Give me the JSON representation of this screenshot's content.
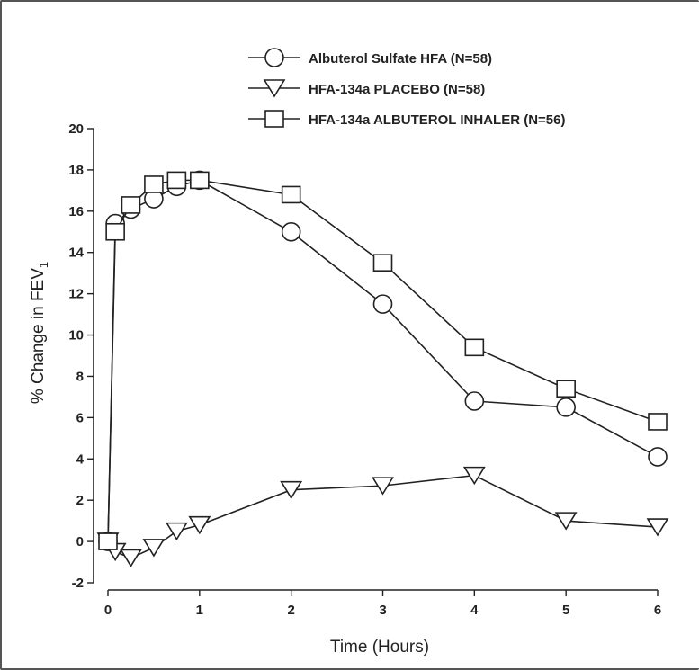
{
  "chart_data": {
    "type": "line",
    "xlabel": "Time (Hours)",
    "ylabel": "% Change in FEV",
    "ylabel_subscript": "1",
    "xlim": [
      0,
      6
    ],
    "ylim": [
      -2,
      20
    ],
    "x_ticks": [
      0,
      1,
      2,
      3,
      4,
      5,
      6
    ],
    "y_ticks": [
      -2,
      0,
      2,
      4,
      6,
      8,
      10,
      12,
      14,
      16,
      18,
      20
    ],
    "grid": false,
    "legend_position": "top-right",
    "series": [
      {
        "name": "Albuterol Sulfate HFA (N=58)",
        "marker": "circle",
        "x": [
          0,
          0.08,
          0.25,
          0.5,
          0.75,
          1,
          2,
          3,
          4,
          5,
          6
        ],
        "y": [
          0,
          15.4,
          16.1,
          16.6,
          17.2,
          17.5,
          15.0,
          11.5,
          6.8,
          6.5,
          4.1
        ]
      },
      {
        "name": "HFA-134a PLACEBO (N=58)",
        "marker": "triangle-down",
        "x": [
          0,
          0.08,
          0.25,
          0.5,
          0.75,
          1,
          2,
          3,
          4,
          5,
          6
        ],
        "y": [
          0,
          -0.5,
          -0.8,
          -0.3,
          0.5,
          0.8,
          2.5,
          2.7,
          3.2,
          1.0,
          0.7
        ]
      },
      {
        "name": "HFA-134a ALBUTEROL INHALER (N=56)",
        "marker": "square",
        "x": [
          0,
          0.08,
          0.25,
          0.5,
          0.75,
          1,
          2,
          3,
          4,
          5,
          6
        ],
        "y": [
          0,
          15.0,
          16.3,
          17.3,
          17.5,
          17.5,
          16.8,
          13.5,
          9.4,
          7.4,
          5.8
        ]
      }
    ]
  }
}
